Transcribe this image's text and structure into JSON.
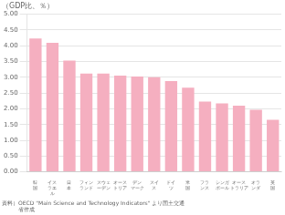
{
  "chart_data": {
    "type": "bar",
    "title": "（GDP比、％）",
    "subtitle": [
      "資料）OECD \"Main Science and Technology Indicators\" より国土交通",
      "　　　省作成"
    ],
    "categories": [
      "韓\n国",
      "イス\nラエ\nル",
      "日\n本",
      "フィン\nランド",
      "スウェ\nーデン",
      "オース\nトリア",
      "デン\nマーク",
      "スイ\nス",
      "ドイ\nツ",
      "米\n国",
      "フラ\nンス",
      "シンガ\nポール",
      "オース\nトラリア",
      "オラ\nンダ",
      "英\n国"
    ],
    "values": [
      4.23,
      4.09,
      3.53,
      3.12,
      3.12,
      3.05,
      3.02,
      3.0,
      2.88,
      2.67,
      2.23,
      2.17,
      2.1,
      1.97,
      1.65
    ],
    "color": "#f5afc0",
    "ylim": [
      0,
      5.0
    ],
    "yticks": [
      {
        "value": 0.0,
        "label": "0.00"
      },
      {
        "value": 0.5,
        "label": "0.50"
      },
      {
        "value": 1.0,
        "label": "1.00"
      },
      {
        "value": 1.5,
        "label": "1.50"
      },
      {
        "value": 2.0,
        "label": "2.00"
      },
      {
        "value": 2.5,
        "label": "2.50"
      },
      {
        "value": 3.0,
        "label": "3.00"
      },
      {
        "value": 3.5,
        "label": "3.50"
      },
      {
        "value": 4.0,
        "label": "4.00"
      },
      {
        "value": 4.5,
        "label": "4.50"
      },
      {
        "value": 5.0,
        "label": "5.00"
      }
    ],
    "grid": true
  }
}
